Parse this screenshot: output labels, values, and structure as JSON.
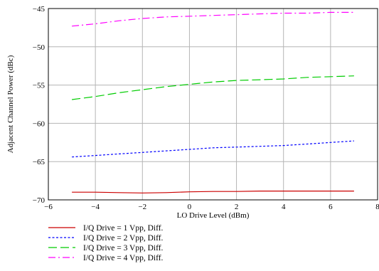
{
  "chart_data": {
    "type": "line",
    "title": "",
    "xlabel": "LO Drive Level (dBm)",
    "ylabel": "Adjacent Channel Power (dBc)",
    "xlim": [
      -6,
      8
    ],
    "ylim": [
      -70,
      -45
    ],
    "xticks": [
      -6,
      -4,
      -2,
      0,
      2,
      4,
      6,
      8
    ],
    "yticks": [
      -70,
      -65,
      -60,
      -55,
      -50,
      -45
    ],
    "xtick_labels": [
      "−6",
      "−4",
      "−2",
      "0",
      "2",
      "4",
      "6",
      "8"
    ],
    "ytick_labels": [
      "−70",
      "−65",
      "−60",
      "−55",
      "−50",
      "−45"
    ],
    "grid": true,
    "legend_position": "bottom-left",
    "series": [
      {
        "name": "I/Q Drive = 1 Vpp, Diff.",
        "color": "#cc0000",
        "dash": "solid",
        "x": [
          -5,
          -4,
          -3,
          -2,
          -1,
          0,
          1,
          2,
          3,
          4,
          5,
          6,
          7
        ],
        "y": [
          -69.0,
          -69.0,
          -69.05,
          -69.1,
          -69.05,
          -68.95,
          -68.9,
          -68.9,
          -68.85,
          -68.85,
          -68.85,
          -68.85,
          -68.85
        ]
      },
      {
        "name": "I/Q Drive = 2 Vpp, Diff.",
        "color": "#0000ff",
        "dash": "dotted",
        "x": [
          -5,
          -4,
          -3,
          -2,
          -1,
          0,
          1,
          2,
          3,
          4,
          5,
          6,
          7
        ],
        "y": [
          -64.4,
          -64.2,
          -64.0,
          -63.8,
          -63.6,
          -63.4,
          -63.2,
          -63.1,
          -63.0,
          -62.9,
          -62.7,
          -62.5,
          -62.3
        ]
      },
      {
        "name": "I/Q Drive = 3 Vpp, Diff.",
        "color": "#00cc00",
        "dash": "longdash",
        "x": [
          -5,
          -4,
          -3,
          -2,
          -1,
          0,
          1,
          2,
          3,
          4,
          5,
          6,
          7
        ],
        "y": [
          -56.9,
          -56.5,
          -56.0,
          -55.6,
          -55.2,
          -54.9,
          -54.6,
          -54.4,
          -54.3,
          -54.2,
          -54.0,
          -53.9,
          -53.8
        ]
      },
      {
        "name": "I/Q Drive = 4 Vpp, Diff.",
        "color": "#ff00ff",
        "dash": "dashdot",
        "x": [
          -5,
          -4,
          -3,
          -2,
          -1,
          0,
          1,
          2,
          3,
          4,
          5,
          6,
          7
        ],
        "y": [
          -47.3,
          -47.0,
          -46.6,
          -46.3,
          -46.1,
          -46.0,
          -45.9,
          -45.8,
          -45.7,
          -45.6,
          -45.6,
          -45.5,
          -45.5
        ]
      }
    ]
  }
}
